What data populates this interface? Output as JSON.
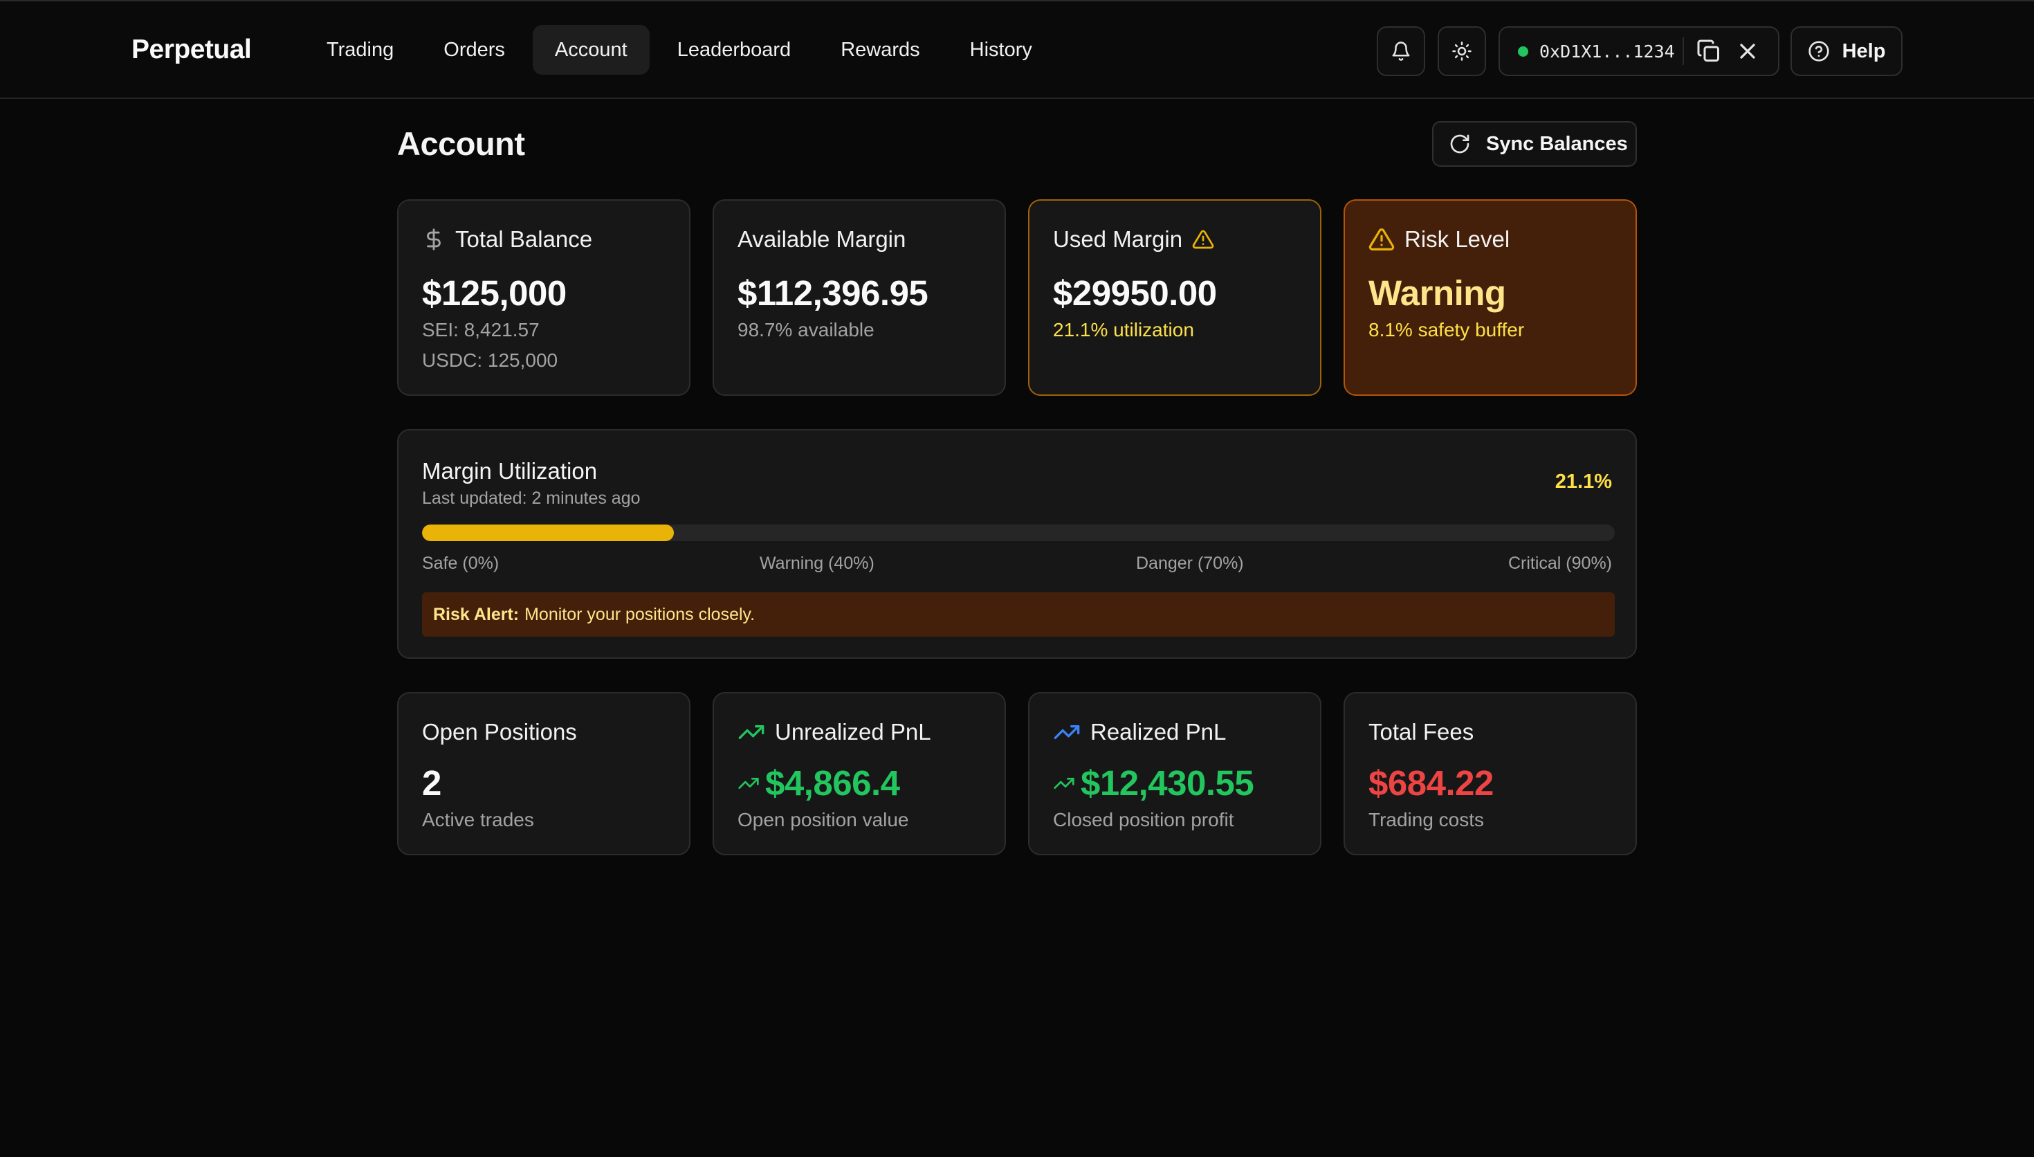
{
  "app": {
    "name": "Perpetual"
  },
  "nav": {
    "items": [
      {
        "label": "Trading"
      },
      {
        "label": "Orders"
      },
      {
        "label": "Account",
        "active": true
      },
      {
        "label": "Leaderboard"
      },
      {
        "label": "Rewards"
      },
      {
        "label": "History"
      }
    ]
  },
  "topbar": {
    "wallet_address": "0xD1X1...1234",
    "wallet_status_color": "#22c55e",
    "help_label": "Help",
    "icons": [
      "bell-icon",
      "sun-icon",
      "copy-icon",
      "close-icon",
      "help-circle-icon"
    ]
  },
  "page": {
    "title": "Account",
    "sync_label": "Sync Balances"
  },
  "summary": {
    "total_balance": {
      "title": "Total Balance",
      "value": "$125,000",
      "sei": "SEI: 8,421.57",
      "usdc": "USDC: 125,000"
    },
    "available_margin": {
      "title": "Available Margin",
      "value": "$112,396.95",
      "sub": "98.7% available"
    },
    "used_margin": {
      "title": "Used Margin",
      "value": "$29950.00",
      "sub": "21.1% utilization"
    },
    "risk_level": {
      "title": "Risk Level",
      "value": "Warning",
      "sub": "8.1% safety buffer"
    }
  },
  "utilization": {
    "title": "Margin Utilization",
    "updated": "Last updated: 2 minutes ago",
    "percent_label": "21.1%",
    "percent": 21.1,
    "scale": [
      "Safe (0%)",
      "Warning (40%)",
      "Danger (70%)",
      "Critical (90%)"
    ],
    "alert_label": "Risk Alert:",
    "alert_text": "Monitor your positions closely."
  },
  "stats": {
    "open_positions": {
      "title": "Open Positions",
      "value": "2",
      "sub": "Active trades"
    },
    "unrealized_pnl": {
      "title": "Unrealized PnL",
      "value": "$4,866.4",
      "sub": "Open position value"
    },
    "realized_pnl": {
      "title": "Realized PnL",
      "value": "$12,430.55",
      "sub": "Closed position profit"
    },
    "total_fees": {
      "title": "Total Fees",
      "value": "$684.22",
      "sub": "Trading costs"
    }
  },
  "colors": {
    "background": "#080808",
    "card": "#171717",
    "warning_accent": "#eab308",
    "risk_card": "#44200a",
    "positive": "#22c55e",
    "negative": "#ef4444",
    "info": "#3b82f6"
  }
}
